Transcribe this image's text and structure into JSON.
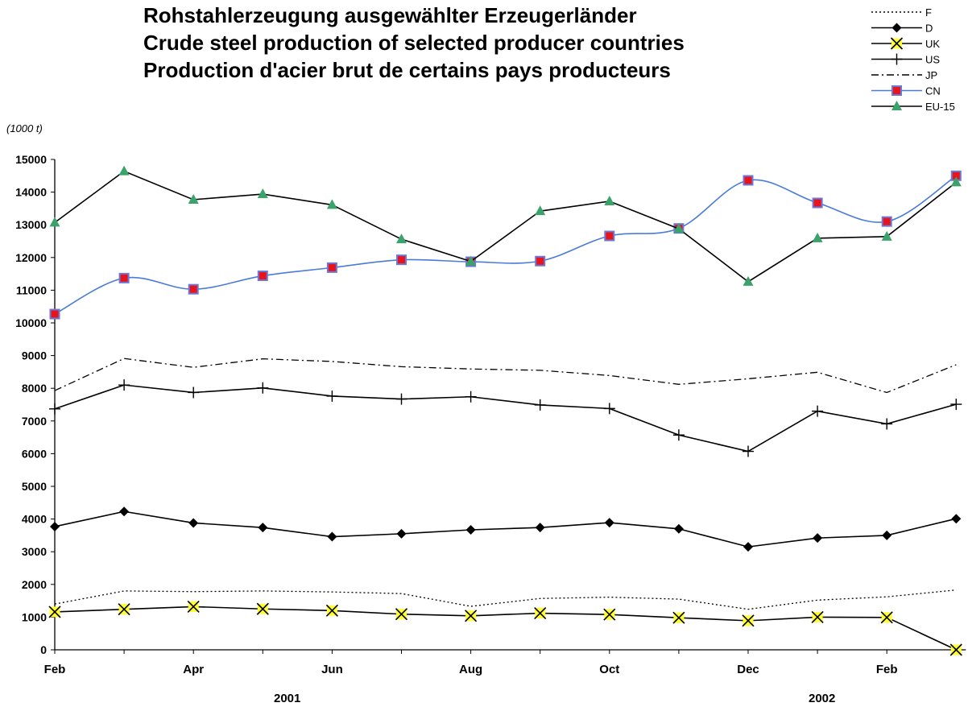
{
  "titles": [
    "Rohstahlerzeugung ausgewählter Erzeugerländer",
    "Crude steel production of selected producer countries",
    "Production d'acier brut de certains pays producteurs"
  ],
  "unit_label": "(1000 t)",
  "year_labels": [
    "2001",
    "2002"
  ],
  "chart_data": {
    "type": "line",
    "ylim": [
      0,
      15000
    ],
    "y_ticks": [
      0,
      1000,
      2000,
      3000,
      4000,
      5000,
      6000,
      7000,
      8000,
      9000,
      10000,
      11000,
      12000,
      13000,
      14000,
      15000
    ],
    "x_tick_labels": [
      "Feb",
      "",
      "Apr",
      "",
      "Jun",
      "",
      "Aug",
      "",
      "Oct",
      "",
      "Dec",
      "",
      "Feb",
      ""
    ],
    "grid": false,
    "legend_position": "top-right",
    "series": [
      {
        "name": "F",
        "color": "#000000",
        "dash": "dotted",
        "marker": "none",
        "values": [
          1400,
          1800,
          1780,
          1800,
          1770,
          1720,
          1330,
          1570,
          1610,
          1550,
          1240,
          1520,
          1620,
          1830
        ]
      },
      {
        "name": "D",
        "color": "#000000",
        "dash": "solid",
        "marker": "diamond",
        "values": [
          3770,
          4230,
          3880,
          3740,
          3460,
          3550,
          3670,
          3740,
          3890,
          3700,
          3150,
          3420,
          3500,
          4010
        ]
      },
      {
        "name": "UK",
        "color": "#000000",
        "dash": "solid",
        "marker": "x-yellow",
        "values": [
          1160,
          1240,
          1320,
          1250,
          1200,
          1090,
          1040,
          1120,
          1080,
          980,
          890,
          1000,
          990,
          0
        ]
      },
      {
        "name": "US",
        "color": "#000000",
        "dash": "solid",
        "marker": "plus",
        "values": [
          7370,
          8100,
          7870,
          8010,
          7760,
          7670,
          7740,
          7490,
          7380,
          6570,
          6070,
          7300,
          6910,
          7510
        ]
      },
      {
        "name": "JP",
        "color": "#000000",
        "dash": "dashdot",
        "marker": "none",
        "values": [
          7930,
          8910,
          8640,
          8900,
          8820,
          8660,
          8590,
          8550,
          8390,
          8120,
          8290,
          8490,
          7870,
          8720
        ]
      },
      {
        "name": "CN",
        "color": "#4a7bd9",
        "dash": "solid",
        "marker": "square-red",
        "smooth": true,
        "values": [
          10270,
          11370,
          11030,
          11440,
          11690,
          11930,
          11870,
          11890,
          12660,
          12890,
          14360,
          13670,
          13100,
          14500
        ]
      },
      {
        "name": "EU-15",
        "color": "#000000",
        "dash": "solid",
        "marker": "triangle-green",
        "values": [
          13070,
          14640,
          13770,
          13940,
          13610,
          12560,
          11880,
          13420,
          13720,
          12880,
          11260,
          12590,
          12640,
          14300
        ]
      }
    ],
    "colors": {
      "cn_line": "#4a7bd9",
      "cn_marker_fill": "#e8141c",
      "cn_marker_edge": "#6b78d8",
      "uk_marker_fill": "#ffff33",
      "eu_marker_fill": "#3aa36a"
    }
  }
}
